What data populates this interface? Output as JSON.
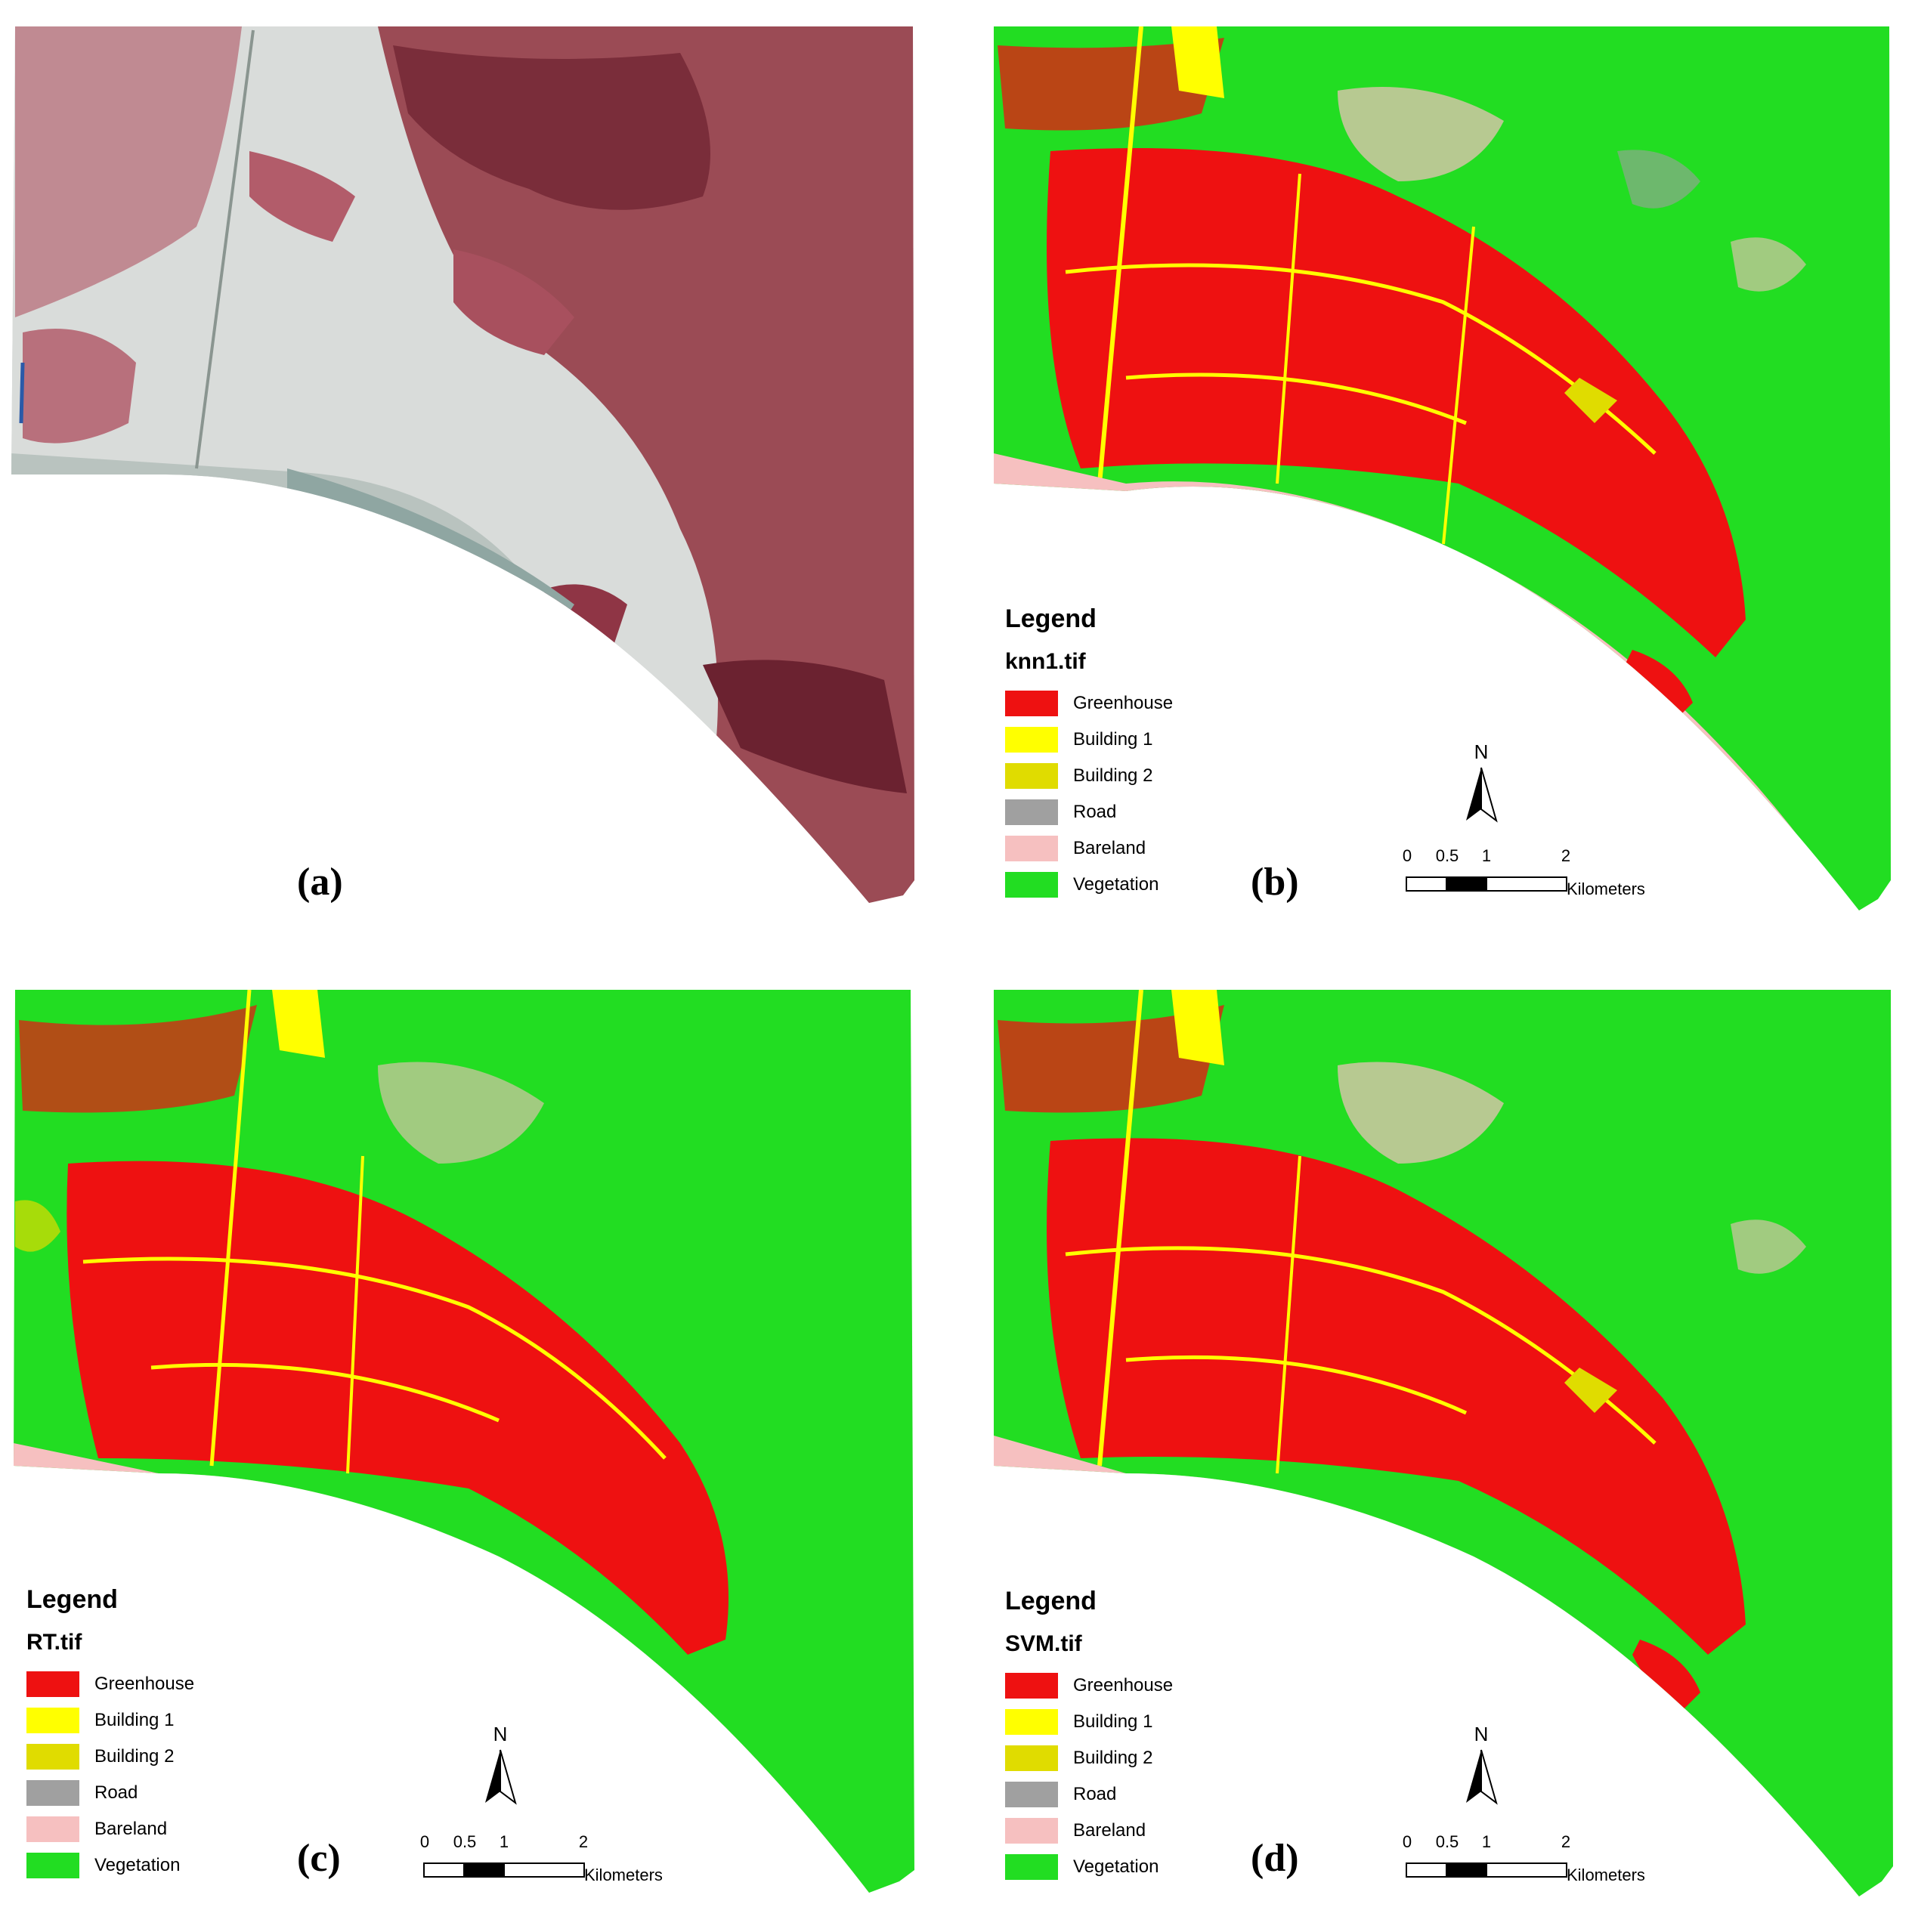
{
  "legend_colors": {
    "Greenhouse": "#ee1111",
    "Building 1": "#ffff00",
    "Building 2": "#e0dc00",
    "Road": "#a0a0a0",
    "Bareland": "#f6c0c0",
    "Vegetation": "#22dd22"
  },
  "panels": [
    {
      "label": "(a)"
    },
    {
      "label": "(b)",
      "legend": {
        "title": "Legend",
        "layer": "knn1.tif",
        "items": [
          "Greenhouse",
          "Building 1",
          "Building 2",
          "Road",
          "Bareland",
          "Vegetation"
        ]
      },
      "north": "N",
      "scale": {
        "ticks": [
          "0",
          "0.5",
          "1",
          "2"
        ],
        "units": "Kilometers"
      }
    },
    {
      "label": "(c)",
      "legend": {
        "title": "Legend",
        "layer": "RT.tif",
        "items": [
          "Greenhouse",
          "Building 1",
          "Building 2",
          "Road",
          "Bareland",
          "Vegetation"
        ]
      },
      "north": "N",
      "scale": {
        "ticks": [
          "0",
          "0.5",
          "1",
          "2"
        ],
        "units": "Kilometers"
      }
    },
    {
      "label": "(d)",
      "legend": {
        "title": "Legend",
        "layer": "SVM.tif",
        "items": [
          "Greenhouse",
          "Building 1",
          "Building 2",
          "Road",
          "Bareland",
          "Vegetation"
        ]
      },
      "north": "N",
      "scale": {
        "ticks": [
          "0",
          "0.5",
          "1",
          "2"
        ],
        "units": "Kilometers"
      }
    }
  ]
}
